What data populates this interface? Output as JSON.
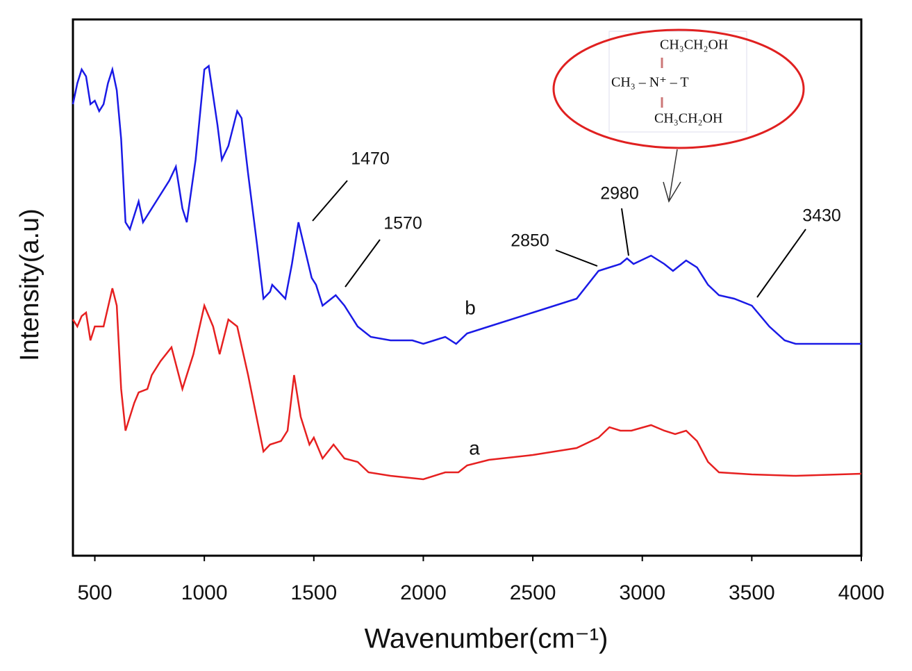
{
  "chart_data": {
    "type": "line",
    "xlabel": "Wavenumber(cm⁻¹)",
    "ylabel": "Intensity(a.u)",
    "xlim": [
      400,
      4000
    ],
    "xticks": [
      500,
      1000,
      1500,
      2000,
      2500,
      3000,
      3500,
      4000
    ],
    "ylim": [
      0,
      772
    ],
    "series": [
      {
        "name": "b",
        "color": "#1a1ae6",
        "x": [
          400,
          420,
          440,
          460,
          480,
          500,
          520,
          540,
          560,
          580,
          600,
          620,
          640,
          660,
          680,
          700,
          720,
          760,
          800,
          840,
          870,
          900,
          920,
          960,
          1000,
          1020,
          1060,
          1080,
          1110,
          1150,
          1170,
          1200,
          1240,
          1270,
          1300,
          1310,
          1340,
          1370,
          1400,
          1430,
          1460,
          1490,
          1510,
          1540,
          1580,
          1600,
          1640,
          1700,
          1760,
          1850,
          1950,
          2000,
          2050,
          2100,
          2150,
          2200,
          2300,
          2500,
          2700,
          2800,
          2850,
          2900,
          2930,
          2960,
          3040,
          3100,
          3140,
          3200,
          3250,
          3300,
          3350,
          3420,
          3500,
          3580,
          3650,
          3700,
          3800,
          4000
        ],
        "values": [
          650,
          680,
          700,
          690,
          650,
          655,
          640,
          650,
          680,
          700,
          670,
          600,
          480,
          470,
          490,
          510,
          480,
          500,
          520,
          540,
          560,
          500,
          480,
          570,
          700,
          705,
          620,
          570,
          590,
          640,
          630,
          550,
          450,
          370,
          380,
          390,
          380,
          370,
          420,
          480,
          440,
          400,
          390,
          360,
          370,
          375,
          360,
          330,
          315,
          310,
          310,
          305,
          310,
          315,
          305,
          320,
          330,
          350,
          370,
          410,
          415,
          420,
          428,
          420,
          432,
          420,
          410,
          425,
          415,
          390,
          375,
          370,
          360,
          330,
          310,
          305,
          305,
          305
        ]
      },
      {
        "name": "a",
        "color": "#e62020",
        "x": [
          400,
          420,
          440,
          460,
          480,
          500,
          540,
          580,
          600,
          620,
          640,
          680,
          700,
          740,
          760,
          800,
          850,
          900,
          950,
          1000,
          1040,
          1070,
          1110,
          1150,
          1200,
          1270,
          1300,
          1350,
          1380,
          1410,
          1440,
          1480,
          1500,
          1540,
          1590,
          1640,
          1700,
          1750,
          1850,
          2000,
          2100,
          2160,
          2200,
          2300,
          2500,
          2700,
          2800,
          2850,
          2900,
          2950,
          3040,
          3100,
          3150,
          3200,
          3250,
          3300,
          3350,
          3500,
          3700,
          4000
        ],
        "values": [
          340,
          330,
          345,
          350,
          310,
          330,
          330,
          385,
          360,
          240,
          180,
          220,
          235,
          240,
          260,
          280,
          300,
          240,
          290,
          360,
          330,
          290,
          340,
          330,
          260,
          150,
          160,
          165,
          180,
          260,
          200,
          160,
          170,
          140,
          160,
          140,
          135,
          120,
          115,
          110,
          120,
          120,
          130,
          138,
          145,
          155,
          170,
          185,
          180,
          180,
          188,
          180,
          175,
          180,
          165,
          135,
          120,
          117,
          115,
          118
        ]
      }
    ],
    "annotations": [
      "1470",
      "1570",
      "2850",
      "2980",
      "3430"
    ],
    "inset": [
      "CH₃CH₂OH",
      "CH₃ – N⁺ – T",
      "CH₃CH₂OH"
    ]
  }
}
